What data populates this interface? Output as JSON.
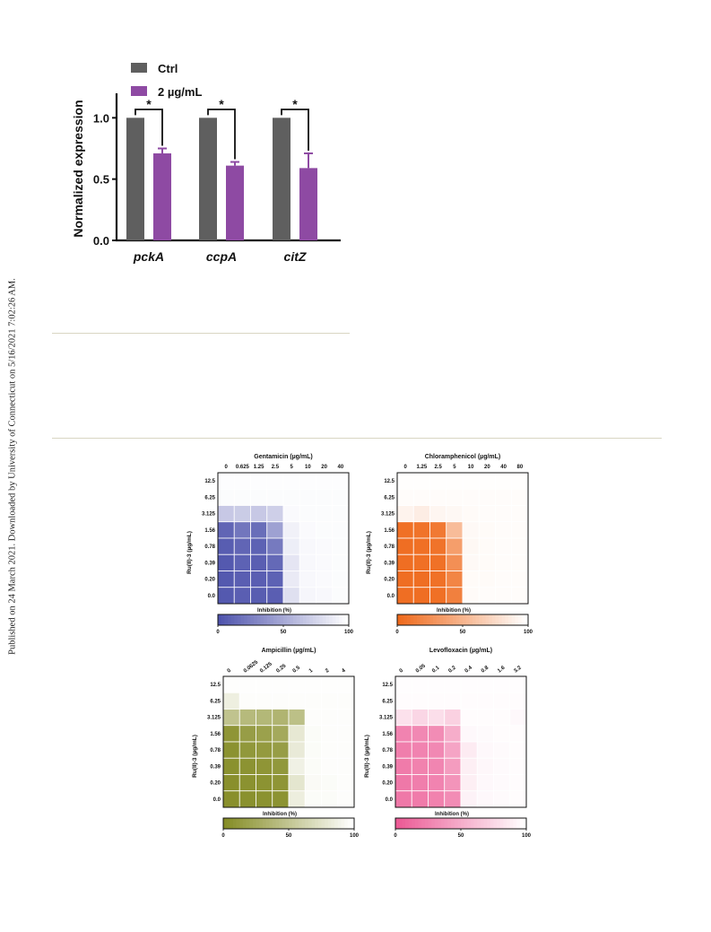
{
  "sidebar_note": "Published on 24 March 2021. Downloaded by University of Connecticut on 5/16/2021 7:02:26 AM.",
  "chart_data": [
    {
      "type": "bar",
      "categories": [
        "pckA",
        "ccpA",
        "citZ"
      ],
      "series": [
        {
          "name": "Ctrl",
          "values": [
            1.0,
            1.0,
            1.0
          ],
          "errors": [
            0,
            0,
            0
          ],
          "color": "#5f5f5f"
        },
        {
          "name": "2 µg/mL",
          "values": [
            0.71,
            0.61,
            0.59
          ],
          "errors": [
            0.04,
            0.03,
            0.12
          ],
          "color": "#8e4aa3"
        }
      ],
      "significance": [
        "*",
        "*",
        "*"
      ],
      "xlabel": "",
      "ylabel": "Normalized expression",
      "ylim": [
        0,
        1.2
      ],
      "yticks": [
        "0.0",
        "0.5",
        "1.0"
      ],
      "legend_position": "top-left"
    },
    {
      "type": "heatmap",
      "title": "Gentamicin (µg/mL)",
      "x_ticks": [
        "0",
        "0.625",
        "1.25",
        "2.5",
        "5",
        "10",
        "20",
        "40"
      ],
      "x_rotated": false,
      "ylabel": "Ru(II)-3 (µg/mL)",
      "y_ticks": [
        "12.5",
        "6.25",
        "3.125",
        "1.56",
        "0.78",
        "0.39",
        "0.20",
        "0.0"
      ],
      "color_low": "#4f54ad",
      "color_high": "#ffffff",
      "colorbar_label": "Inhibition (%)",
      "colorbar_ticks": [
        "0",
        "50",
        "100"
      ],
      "values": [
        [
          99,
          99,
          99,
          99,
          99,
          99,
          99,
          99
        ],
        [
          98,
          98,
          98,
          98,
          98,
          98,
          98,
          98
        ],
        [
          68,
          70,
          68,
          72,
          97,
          98,
          98,
          98
        ],
        [
          10,
          20,
          15,
          45,
          92,
          97,
          98,
          98
        ],
        [
          5,
          10,
          8,
          22,
          90,
          96,
          97,
          98
        ],
        [
          3,
          8,
          6,
          12,
          85,
          96,
          97,
          98
        ],
        [
          3,
          6,
          6,
          8,
          88,
          96,
          97,
          98
        ],
        [
          3,
          6,
          5,
          6,
          82,
          95,
          96,
          98
        ]
      ]
    },
    {
      "type": "heatmap",
      "title": "Chloramphenicol (µg/mL)",
      "x_ticks": [
        "0",
        "1.25",
        "2.5",
        "5",
        "10",
        "20",
        "40",
        "80"
      ],
      "x_rotated": false,
      "ylabel": "Ru(II)-3 (µg/mL)",
      "y_ticks": [
        "12.5",
        "6.25",
        "3.125",
        "1.56",
        "0.78",
        "0.39",
        "0.20",
        "0.0"
      ],
      "color_low": "#ef6a1c",
      "color_high": "#ffffff",
      "colorbar_label": "Inhibition (%)",
      "colorbar_ticks": [
        "0",
        "50",
        "100"
      ],
      "values": [
        [
          99,
          99,
          99,
          99,
          99,
          99,
          99,
          99
        ],
        [
          98,
          98,
          98,
          98,
          98,
          98,
          98,
          98
        ],
        [
          92,
          88,
          94,
          95,
          97,
          98,
          98,
          98
        ],
        [
          4,
          6,
          10,
          55,
          96,
          97,
          98,
          98
        ],
        [
          3,
          4,
          6,
          35,
          95,
          97,
          98,
          98
        ],
        [
          3,
          4,
          5,
          25,
          96,
          97,
          98,
          98
        ],
        [
          3,
          3,
          5,
          18,
          97,
          97,
          98,
          98
        ],
        [
          3,
          3,
          4,
          15,
          97,
          98,
          98,
          98
        ]
      ]
    },
    {
      "type": "heatmap",
      "title": "Ampicillin (µg/mL)",
      "x_ticks": [
        "0",
        "0.0625",
        "0.125",
        "0.25",
        "0.5",
        "1",
        "2",
        "4"
      ],
      "x_rotated": true,
      "ylabel": "Ru(II)-3 (µg/mL)",
      "y_ticks": [
        "12.5",
        "6.25",
        "3.125",
        "1.56",
        "0.78",
        "0.39",
        "0.20",
        "0.0"
      ],
      "color_low": "#858c25",
      "color_high": "#ffffff",
      "colorbar_label": "Inhibition (%)",
      "colorbar_ticks": [
        "0",
        "50",
        "100"
      ],
      "values": [
        [
          99,
          99,
          99,
          99,
          99,
          99,
          99,
          99
        ],
        [
          86,
          98,
          98,
          98,
          98,
          98,
          98,
          98
        ],
        [
          48,
          40,
          38,
          35,
          45,
          98,
          98,
          98
        ],
        [
          8,
          15,
          18,
          25,
          80,
          97,
          98,
          98
        ],
        [
          5,
          10,
          12,
          15,
          82,
          97,
          98,
          98
        ],
        [
          4,
          6,
          8,
          10,
          88,
          97,
          98,
          98
        ],
        [
          3,
          5,
          6,
          8,
          78,
          96,
          97,
          98
        ],
        [
          3,
          4,
          5,
          6,
          85,
          97,
          97,
          98
        ]
      ]
    },
    {
      "type": "heatmap",
      "title": "Levofloxacin (µg/mL)",
      "x_ticks": [
        "0",
        "0.05",
        "0.1",
        "0.2",
        "0.4",
        "0.8",
        "1.6",
        "3.2"
      ],
      "x_rotated": true,
      "ylabel": "Ru(II)-3 (µg/mL)",
      "y_ticks": [
        "12.5",
        "6.25",
        "3.125",
        "1.56",
        "0.78",
        "0.39",
        "0.20",
        "0.0"
      ],
      "color_low": "#ec5a95",
      "color_high": "#ffffff",
      "colorbar_label": "Inhibition (%)",
      "colorbar_ticks": [
        "0",
        "50",
        "100"
      ],
      "values": [
        [
          99,
          99,
          99,
          99,
          99,
          99,
          99,
          99
        ],
        [
          98,
          98,
          98,
          98,
          98,
          98,
          98,
          98
        ],
        [
          82,
          75,
          80,
          72,
          98,
          98,
          98,
          96
        ],
        [
          25,
          28,
          30,
          50,
          96,
          97,
          98,
          98
        ],
        [
          22,
          25,
          28,
          45,
          88,
          96,
          97,
          98
        ],
        [
          20,
          24,
          26,
          40,
          90,
          95,
          97,
          98
        ],
        [
          18,
          22,
          25,
          35,
          90,
          96,
          97,
          98
        ],
        [
          18,
          20,
          24,
          30,
          92,
          96,
          97,
          98
        ]
      ]
    }
  ]
}
